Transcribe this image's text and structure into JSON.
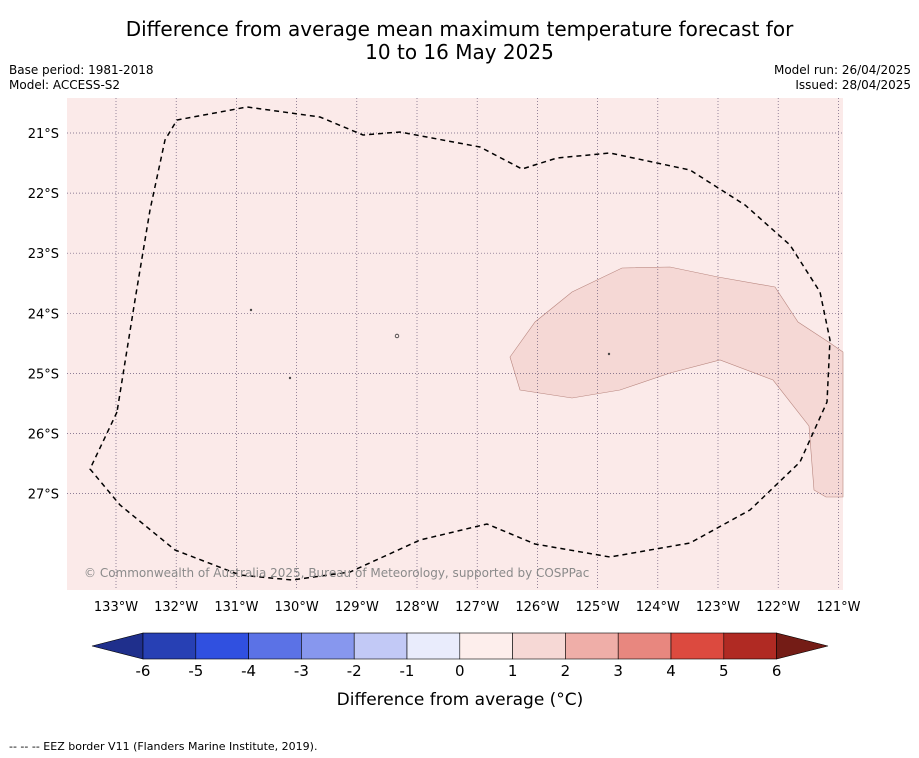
{
  "header": {
    "title_line1": "Difference from average mean maximum temperature forecast for",
    "title_line2": "10 to 16 May 2025",
    "base_period": "Base period: 1981-2018",
    "model": "Model: ACCESS-S2",
    "model_run": "Model run: 26/04/2025",
    "issued": "Issued: 28/04/2025"
  },
  "map": {
    "background_color": "#fbeae9",
    "anomaly_patch_color": "#f5d8d5",
    "grid_color": "#6b5a7a",
    "lon_labels": [
      "133°W",
      "132°W",
      "131°W",
      "130°W",
      "129°W",
      "128°W",
      "127°W",
      "126°W",
      "125°W",
      "124°W",
      "123°W",
      "122°W",
      "121°W"
    ],
    "lat_labels": [
      "21°S",
      "22°S",
      "23°S",
      "24°S",
      "25°S",
      "26°S",
      "27°S"
    ],
    "credit": "© Commonwealth of Australia 2025, Bureau of Meteorology, supported by COSPPac"
  },
  "colorbar": {
    "ticks": [
      "-6",
      "-5",
      "-4",
      "-3",
      "-2",
      "-1",
      "0",
      "1",
      "2",
      "3",
      "4",
      "5",
      "6"
    ],
    "colors": [
      "#1f2f8c",
      "#2740b4",
      "#3050e0",
      "#5b72e6",
      "#8797ee",
      "#c2c9f6",
      "#e9ecfc",
      "#fdeeec",
      "#f6d8d5",
      "#efaea8",
      "#e8877f",
      "#dc4a3f",
      "#b02a23",
      "#741c16"
    ],
    "label": "Difference from average (°C)"
  },
  "footer": {
    "eez_note": "--  --  -- EEZ border V11 (Flanders Marine Institute, 2019)."
  }
}
